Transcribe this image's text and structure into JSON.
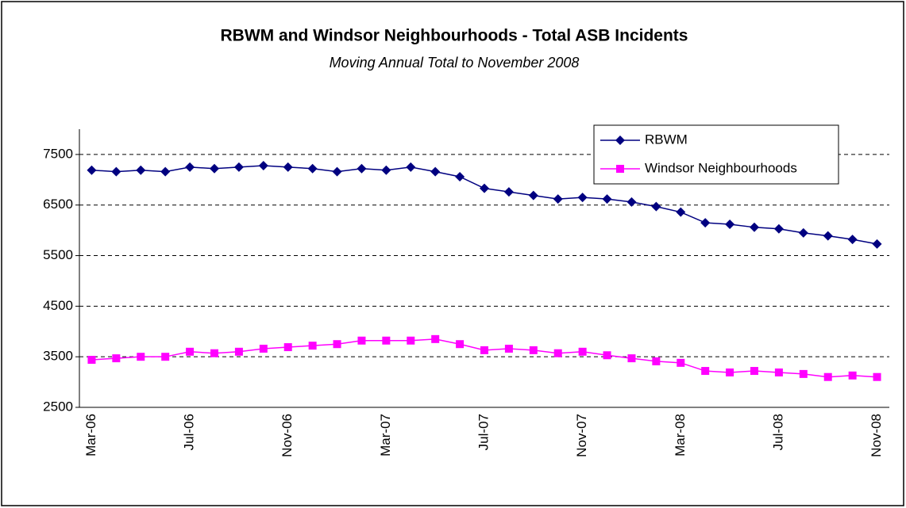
{
  "chart_data": {
    "type": "line",
    "title": "RBWM and Windsor Neighbourhoods - Total ASB Incidents",
    "subtitle": "Moving Annual Total to November 2008",
    "categories": [
      "Mar-06",
      null,
      null,
      null,
      "Jul-06",
      null,
      null,
      null,
      "Nov-06",
      null,
      null,
      null,
      "Mar-07",
      null,
      null,
      null,
      "Jul-07",
      null,
      null,
      null,
      "Nov-07",
      null,
      null,
      null,
      "Mar-08",
      null,
      null,
      null,
      "Jul-08",
      null,
      null,
      null,
      "Nov-08"
    ],
    "series": [
      {
        "name": "RBWM",
        "color": "#000080",
        "marker": "diamond",
        "values": [
          7190,
          7160,
          7190,
          7160,
          7250,
          7220,
          7250,
          7280,
          7250,
          7220,
          7160,
          7220,
          7190,
          7250,
          7160,
          7060,
          6830,
          6760,
          6690,
          6620,
          6650,
          6620,
          6560,
          6470,
          6360,
          6150,
          6120,
          6060,
          6030,
          5950,
          5890,
          5820,
          5730
        ]
      },
      {
        "name": "Windsor Neighbourhoods",
        "color": "#FF00FF",
        "marker": "square",
        "values": [
          3440,
          3470,
          3500,
          3500,
          3600,
          3570,
          3600,
          3660,
          3690,
          3720,
          3750,
          3820,
          3820,
          3820,
          3850,
          3750,
          3630,
          3660,
          3630,
          3570,
          3600,
          3530,
          3470,
          3410,
          3380,
          3220,
          3190,
          3220,
          3190,
          3160,
          3100,
          3130,
          3100
        ]
      }
    ],
    "ylim": [
      2500,
      8000
    ],
    "yticks": [
      2500,
      3500,
      4500,
      5500,
      6500,
      7500
    ],
    "grid": true
  }
}
